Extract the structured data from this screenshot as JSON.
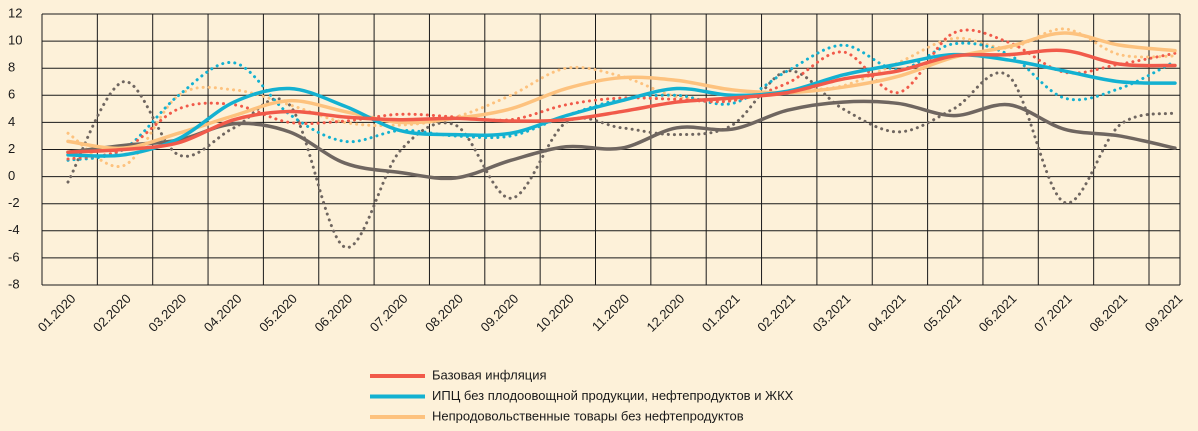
{
  "chart_data": {
    "type": "line",
    "categories": [
      "01.2020",
      "02.2020",
      "03.2020",
      "04.2020",
      "05.2020",
      "06.2020",
      "07.2020",
      "08.2020",
      "09.2020",
      "10.2020",
      "11.2020",
      "12.2020",
      "01.2021",
      "02.2021",
      "03.2021",
      "04.2021",
      "05.2021",
      "06.2021",
      "07.2021",
      "08.2021",
      "09.2021"
    ],
    "series": [
      {
        "name": "Базовая инфляция",
        "color": "#f15a4a",
        "style": "solid",
        "values": [
          1.8,
          2.0,
          2.5,
          4.2,
          4.8,
          4.4,
          4.2,
          4.3,
          4.1,
          4.2,
          4.8,
          5.5,
          5.8,
          6.2,
          7.2,
          7.8,
          8.9,
          9.0,
          9.3,
          8.3,
          8.2
        ]
      },
      {
        "name": "ИПЦ без плодоовощной продукции, нефтепродуктов и ЖКХ",
        "color": "#13b1d1",
        "style": "solid",
        "values": [
          1.6,
          1.6,
          2.8,
          5.5,
          6.5,
          5.2,
          3.4,
          3.1,
          3.2,
          4.5,
          5.6,
          6.5,
          6.0,
          6.3,
          7.5,
          8.3,
          9.0,
          8.6,
          7.8,
          7.0,
          6.9
        ]
      },
      {
        "name": "Непродовольственные товары без нефтепродуктов",
        "color": "#fdc27e",
        "style": "solid",
        "values": [
          2.6,
          2.1,
          3.2,
          4.5,
          5.6,
          4.8,
          4.0,
          4.3,
          5.0,
          6.5,
          7.3,
          7.1,
          6.4,
          6.2,
          6.6,
          7.4,
          8.8,
          9.6,
          10.6,
          9.7,
          9.3
        ]
      },
      {
        "color": "#6f6660",
        "style": "solid",
        "values": [
          1.8,
          2.3,
          2.7,
          3.9,
          3.3,
          1.0,
          0.3,
          -0.1,
          1.2,
          2.2,
          2.1,
          3.6,
          3.5,
          4.9,
          5.5,
          5.4,
          4.5,
          5.3,
          3.5,
          3.0,
          2.1
        ]
      },
      {
        "color": "#f15a4a",
        "style": "dotted",
        "values": [
          1.3,
          2.0,
          5.0,
          5.3,
          4.0,
          4.1,
          4.6,
          4.4,
          4.2,
          5.3,
          5.8,
          5.7,
          5.6,
          6.9,
          9.2,
          6.2,
          10.6,
          9.9,
          7.7,
          8.3,
          9.1
        ]
      },
      {
        "color": "#13b1d1",
        "style": "dotted",
        "values": [
          1.2,
          2.0,
          6.0,
          8.4,
          4.6,
          2.6,
          3.4,
          3.0,
          3.0,
          4.5,
          5.7,
          6.0,
          5.4,
          7.8,
          9.7,
          7.9,
          9.8,
          9.0,
          5.8,
          6.5,
          8.5
        ]
      },
      {
        "color": "#fdc27e",
        "style": "dotted",
        "values": [
          3.2,
          0.8,
          6.0,
          6.4,
          5.3,
          4.0,
          3.8,
          4.4,
          6.0,
          8.0,
          7.4,
          5.9,
          5.7,
          6.3,
          6.7,
          8.4,
          10.2,
          9.5,
          10.9,
          9.0,
          8.9
        ]
      },
      {
        "color": "#6f6660",
        "style": "dotted",
        "values": [
          -0.4,
          7.0,
          1.6,
          3.6,
          5.3,
          -5.2,
          1.9,
          3.8,
          -1.6,
          4.0,
          3.6,
          3.1,
          3.8,
          7.8,
          5.0,
          3.3,
          5.0,
          7.4,
          -1.9,
          3.8,
          4.7
        ]
      }
    ],
    "ylim": [
      -8,
      12
    ],
    "yticks": [
      -8,
      -6,
      -4,
      -2,
      0,
      2,
      4,
      6,
      8,
      10,
      12
    ],
    "grid": true
  }
}
